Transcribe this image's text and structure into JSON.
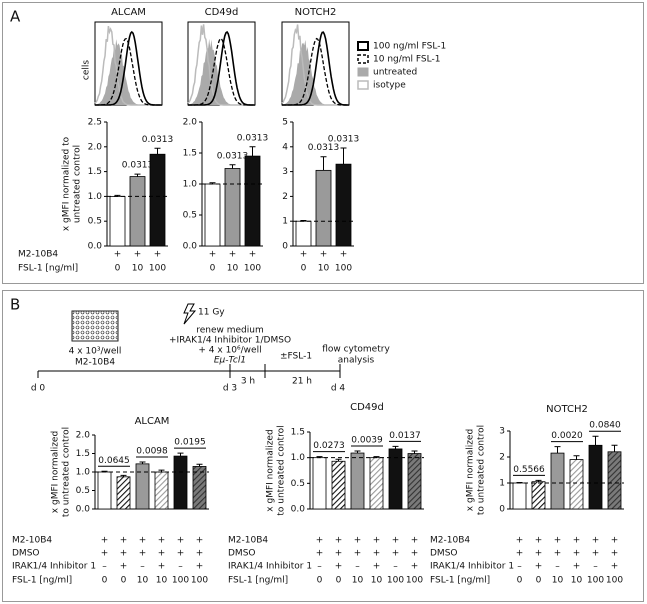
{
  "panel_a": {
    "label": "A",
    "histogram_titles": [
      "ALCAM",
      "CD49d",
      "NOTCH2"
    ],
    "histogram_ylabel": "cells",
    "legend": [
      "100 ng/ml FSL-1",
      "10 ng/ml FSL-1",
      "untreated",
      "isotype"
    ],
    "condition_names": [
      "M2-10B4",
      "FSL-1 [ng/ml]"
    ]
  },
  "panel_b": {
    "label": "B",
    "timeline": {
      "seeding": [
        "4 x 10³/well",
        "M2-10B4"
      ],
      "irradiation": "11 Gy",
      "medium": [
        "renew medium",
        "+IRAK1/4 Inhibitor 1/DMSO",
        "+ 4 x 10⁶/well",
        "Eμ-Tcl1"
      ],
      "stimulation": "±FSL-1",
      "readout": [
        "flow cytometry",
        "analysis"
      ],
      "days": [
        "d 0",
        "d 3",
        "d 4"
      ],
      "intervals": [
        "3 h",
        "21 h"
      ]
    }
  },
  "chart_data": [
    {
      "type": "bar",
      "ylabel": [
        "x gMFI normalized to",
        "untreated control"
      ],
      "values": [
        1.0,
        1.4,
        1.85
      ],
      "errors": [
        0.02,
        0.05,
        0.12
      ],
      "colors": [
        "#ffffff",
        "#9a9a9a",
        "#111111"
      ],
      "hatch": [
        null,
        null,
        null
      ],
      "value_annotations": [
        null,
        "0.0313",
        "0.0313"
      ],
      "reference_line": 1,
      "ylim": [
        0,
        2.5
      ],
      "yticks": [
        {
          "value": 0,
          "label": "0.0"
        },
        {
          "value": 0.5,
          "label": "0.5"
        },
        {
          "value": 1,
          "label": "1.0"
        },
        {
          "value": 1.5,
          "label": "1.5"
        },
        {
          "value": 2,
          "label": "2.0"
        },
        {
          "value": 2.5,
          "label": "2.5"
        }
      ],
      "condition_labels": [
        [
          "+",
          "+",
          "+"
        ],
        [
          "0",
          "10",
          "100"
        ]
      ]
    },
    {
      "type": "bar",
      "values": [
        1.0,
        1.25,
        1.45
      ],
      "errors": [
        0.02,
        0.06,
        0.15
      ],
      "colors": [
        "#ffffff",
        "#9a9a9a",
        "#111111"
      ],
      "hatch": [
        null,
        null,
        null
      ],
      "value_annotations": [
        null,
        "0.0313",
        "0.0313"
      ],
      "reference_line": 1,
      "ylim": [
        0,
        2
      ],
      "yticks": [
        {
          "value": 0,
          "label": "0.0"
        },
        {
          "value": 0.5,
          "label": "0.5"
        },
        {
          "value": 1,
          "label": "1.0"
        },
        {
          "value": 1.5,
          "label": "1.5"
        },
        {
          "value": 2,
          "label": "2.0"
        }
      ],
      "condition_labels": [
        [
          "+",
          "+",
          "+"
        ],
        [
          "0",
          "10",
          "100"
        ]
      ]
    },
    {
      "type": "bar",
      "values": [
        1.0,
        3.05,
        3.3
      ],
      "errors": [
        0.03,
        0.55,
        0.65
      ],
      "colors": [
        "#ffffff",
        "#9a9a9a",
        "#111111"
      ],
      "hatch": [
        null,
        null,
        null
      ],
      "value_annotations": [
        null,
        "0.0313",
        "0.0313"
      ],
      "reference_line": 1,
      "ylim": [
        0,
        5
      ],
      "yticks": [
        0,
        1,
        2,
        3,
        4,
        5
      ],
      "condition_labels": [
        [
          "+",
          "+",
          "+"
        ],
        [
          "0",
          "10",
          "100"
        ]
      ]
    },
    {
      "type": "bar",
      "title": "ALCAM",
      "ylabel": [
        "x gMFI normalized",
        "to untreated control"
      ],
      "values": [
        1.0,
        0.87,
        1.22,
        1.0,
        1.43,
        1.15
      ],
      "errors": [
        0.02,
        0.04,
        0.05,
        0.05,
        0.08,
        0.06
      ],
      "colors": [
        "#ffffff",
        "#ffffff",
        "#9a9a9a",
        "#ffffff",
        "#111111",
        "#7a7a7a"
      ],
      "hatch": [
        null,
        "#111111",
        null,
        "#9a9a9a",
        null,
        "#333333"
      ],
      "pair_annotations": [
        "0.0645",
        "0.0098",
        "0.0195"
      ],
      "reference_line": 1,
      "ylim": [
        0,
        2
      ],
      "yticks": [
        {
          "value": 0,
          "label": "0.0"
        },
        {
          "value": 0.5,
          "label": "0.5"
        },
        {
          "value": 1,
          "label": "1.0"
        },
        {
          "value": 1.5,
          "label": "1.5"
        },
        {
          "value": 2,
          "label": "2.0"
        }
      ],
      "condition_names": [
        "M2-10B4",
        "DMSO",
        "IRAK1/4 Inhibitor 1",
        "FSL-1 [ng/ml]"
      ],
      "condition_labels": [
        [
          "+",
          "+",
          "+",
          "+",
          "+",
          "+"
        ],
        [
          "+",
          "+",
          "+",
          "+",
          "+",
          "+"
        ],
        [
          "–",
          "+",
          "–",
          "+",
          "–",
          "+"
        ],
        [
          "0",
          "0",
          "10",
          "10",
          "100",
          "100"
        ]
      ]
    },
    {
      "type": "bar",
      "title": "CD49d",
      "ylabel": [
        "x gMFI normalized",
        "to untreated control"
      ],
      "values": [
        1.0,
        0.93,
        1.09,
        1.0,
        1.17,
        1.08
      ],
      "errors": [
        0.02,
        0.04,
        0.04,
        0.02,
        0.05,
        0.05
      ],
      "colors": [
        "#ffffff",
        "#ffffff",
        "#9a9a9a",
        "#ffffff",
        "#111111",
        "#7a7a7a"
      ],
      "hatch": [
        null,
        "#111111",
        null,
        "#9a9a9a",
        null,
        "#333333"
      ],
      "pair_annotations": [
        "0.0273",
        "0.0039",
        "0.0137"
      ],
      "reference_line": 1,
      "ylim": [
        0,
        1.5
      ],
      "yticks": [
        {
          "value": 0,
          "label": "0.0"
        },
        {
          "value": 0.5,
          "label": "0.5"
        },
        {
          "value": 1,
          "label": "1.0"
        },
        {
          "value": 1.5,
          "label": "1.5"
        }
      ],
      "condition_names": [
        "M2-10B4",
        "DMSO",
        "IRAK1/4 Inhibitor 1",
        "FSL-1 [ng/ml]"
      ],
      "condition_labels": [
        [
          "+",
          "+",
          "+",
          "+",
          "+",
          "+"
        ],
        [
          "+",
          "+",
          "+",
          "+",
          "+",
          "+"
        ],
        [
          "–",
          "+",
          "–",
          "+",
          "–",
          "+"
        ],
        [
          "0",
          "0",
          "10",
          "10",
          "100",
          "100"
        ]
      ]
    },
    {
      "type": "bar",
      "title": "NOTCH2",
      "ylabel": [
        "x gMFI normalized",
        "to untreated control"
      ],
      "values": [
        1.0,
        1.05,
        2.15,
        1.9,
        2.45,
        2.2
      ],
      "errors": [
        0.02,
        0.05,
        0.25,
        0.15,
        0.35,
        0.25
      ],
      "colors": [
        "#ffffff",
        "#ffffff",
        "#9a9a9a",
        "#ffffff",
        "#111111",
        "#7a7a7a"
      ],
      "hatch": [
        null,
        "#111111",
        null,
        "#9a9a9a",
        null,
        "#333333"
      ],
      "pair_annotations": [
        "0.5566",
        "0.0020",
        "0.0840"
      ],
      "reference_line": 1,
      "ylim": [
        0,
        3
      ],
      "yticks": [
        0,
        1,
        2,
        3
      ],
      "condition_names": [
        "M2-10B4",
        "DMSO",
        "IRAK1/4 Inhibitor 1",
        "FSL-1 [ng/ml]"
      ],
      "condition_labels": [
        [
          "+",
          "+",
          "+",
          "+",
          "+",
          "+"
        ],
        [
          "+",
          "+",
          "+",
          "+",
          "+",
          "+"
        ],
        [
          "–",
          "+",
          "–",
          "+",
          "–",
          "+"
        ],
        [
          "0",
          "0",
          "10",
          "10",
          "100",
          "100"
        ]
      ]
    }
  ]
}
